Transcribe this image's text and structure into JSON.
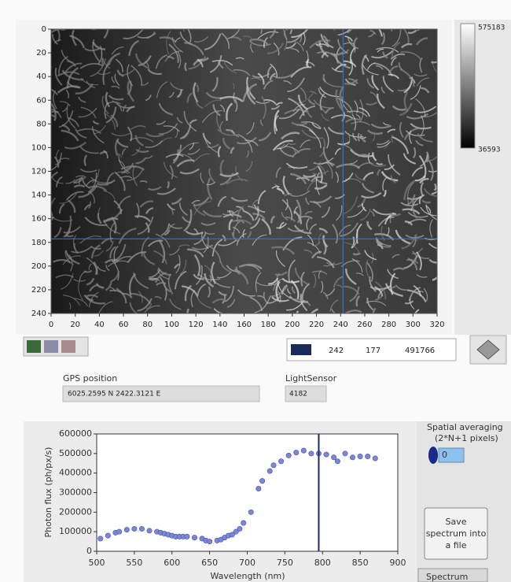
{
  "image_display": {
    "xlim": [
      0,
      320
    ],
    "ylim": [
      0,
      240
    ],
    "xticks": [
      0,
      20,
      40,
      60,
      80,
      100,
      120,
      140,
      160,
      180,
      200,
      220,
      240,
      260,
      280,
      300,
      320
    ],
    "yticks": [
      0,
      20,
      40,
      60,
      80,
      100,
      120,
      140,
      160,
      180,
      200,
      220,
      240
    ],
    "cursor": {
      "x": 242,
      "y": 177,
      "value": 491766
    },
    "colorscale": {
      "max_label": "575183",
      "min_label": "36593"
    }
  },
  "gps": {
    "label": "GPS position",
    "value": "6025.2595 N 2422.3121 E"
  },
  "light_sensor": {
    "label": "LightSensor",
    "value": 4182
  },
  "spectrum_plot": {
    "type": "scatter",
    "color": "#7b86d6",
    "x_label": "Wavelength (nm)",
    "y_label": "Photon flux (ph/px/s)",
    "xlim": [
      500,
      900
    ],
    "ylim": [
      0,
      600000
    ],
    "xticks": [
      500,
      550,
      600,
      650,
      700,
      750,
      800,
      850,
      900
    ],
    "yticks": [
      0,
      100000,
      200000,
      300000,
      400000,
      500000,
      600000
    ],
    "cursor_x": 795,
    "x": [
      505,
      515,
      525,
      530,
      540,
      550,
      560,
      570,
      580,
      585,
      590,
      595,
      600,
      605,
      610,
      615,
      620,
      630,
      640,
      645,
      650,
      660,
      665,
      670,
      675,
      680,
      685,
      690,
      695,
      705,
      715,
      720,
      730,
      735,
      745,
      755,
      765,
      775,
      785,
      795,
      805,
      815,
      820,
      830,
      840,
      850,
      860,
      870
    ],
    "values": [
      65000,
      80000,
      95000,
      100000,
      110000,
      115000,
      115000,
      105000,
      100000,
      95000,
      90000,
      85000,
      80000,
      75000,
      75000,
      75000,
      75000,
      70000,
      65000,
      55000,
      50000,
      55000,
      60000,
      70000,
      80000,
      85000,
      100000,
      115000,
      145000,
      200000,
      320000,
      360000,
      410000,
      440000,
      460000,
      490000,
      505000,
      515000,
      500000,
      500000,
      495000,
      480000,
      460000,
      500000,
      480000,
      485000,
      485000,
      475000
    ]
  },
  "spatial_averaging": {
    "label": "Spatial averaging",
    "sublabel": "(2*N+1 pixels)",
    "value": 0
  },
  "save_button": {
    "label": "Save spectrum into a file"
  },
  "tab": {
    "label": "Spectrum"
  }
}
